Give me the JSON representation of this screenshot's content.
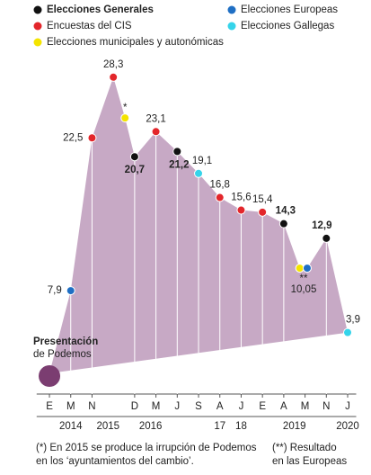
{
  "chart_data": {
    "type": "area",
    "legend": [
      {
        "name": "Elecciones Generales",
        "color": "#111111"
      },
      {
        "name": "Encuestas del CIS",
        "color": "#e3262b"
      },
      {
        "name": "Elecciones municipales y autonómicas",
        "color": "#f4e400"
      },
      {
        "name": "Elecciones Europeas",
        "color": "#1f6fc4"
      },
      {
        "name": "Elecciones Gallegas",
        "color": "#35d4ea"
      }
    ],
    "area_color": "#c7a9c5",
    "start_color": "#7b3d71",
    "points": {
      "x": [
        0,
        1,
        2,
        3,
        3.55,
        4,
        5,
        6,
        7,
        8,
        9,
        10,
        11,
        11.75,
        12.1,
        13,
        14
      ],
      "values": [
        0,
        7.9,
        22.5,
        28.3,
        24.4,
        20.7,
        23.1,
        21.2,
        19.1,
        16.8,
        15.6,
        15.4,
        14.3,
        10.05,
        10.05,
        12.9,
        3.9
      ],
      "value_labels": [
        null,
        "7,9",
        "22,5",
        "28,3",
        null,
        "20,7",
        "23,1",
        "21,2",
        "19,1",
        "16,8",
        "15,6",
        "15,4",
        "14,3",
        null,
        "10,05",
        "12,9",
        "3,9"
      ],
      "kinds": [
        null,
        3,
        1,
        1,
        2,
        0,
        1,
        0,
        4,
        1,
        1,
        1,
        0,
        2,
        3,
        0,
        4
      ]
    },
    "start_label": [
      "Presentación",
      "de Podemos"
    ],
    "annotations": [
      {
        "text": "*",
        "point": 4
      },
      {
        "text": "**",
        "point": 14
      }
    ],
    "xlim": [
      -0.6,
      14.4
    ],
    "ylim": [
      0,
      30
    ],
    "xticks": [
      {
        "value": 0,
        "label": "E"
      },
      {
        "value": 1,
        "label": "M"
      },
      {
        "value": 2,
        "label": "N"
      },
      {
        "value": 4,
        "label": "D"
      },
      {
        "value": 5,
        "label": "M"
      },
      {
        "value": 6,
        "label": "J"
      },
      {
        "value": 7,
        "label": "S"
      },
      {
        "value": 8,
        "label": "A"
      },
      {
        "value": 9,
        "label": "J"
      },
      {
        "value": 10,
        "label": "E"
      },
      {
        "value": 11,
        "label": "A"
      },
      {
        "value": 12,
        "label": "M"
      },
      {
        "value": 13,
        "label": "N"
      },
      {
        "value": 14,
        "label": "J"
      }
    ],
    "years": [
      {
        "label": "2014",
        "x": 1
      },
      {
        "label": "2015",
        "x": 2.75
      },
      {
        "label": "2016",
        "x": 4.75
      },
      {
        "label": "17",
        "x": 8
      },
      {
        "label": "18",
        "x": 9
      },
      {
        "label": "2019",
        "x": 11.5
      },
      {
        "label": "2020",
        "x": 14
      }
    ],
    "footnotes": [
      [
        "(*) En 2015 se produce la irrupción de Podemos",
        "en los ‘ayuntamientos del cambio’."
      ],
      [
        "(**) Resultado",
        "en las Europeas"
      ]
    ]
  }
}
